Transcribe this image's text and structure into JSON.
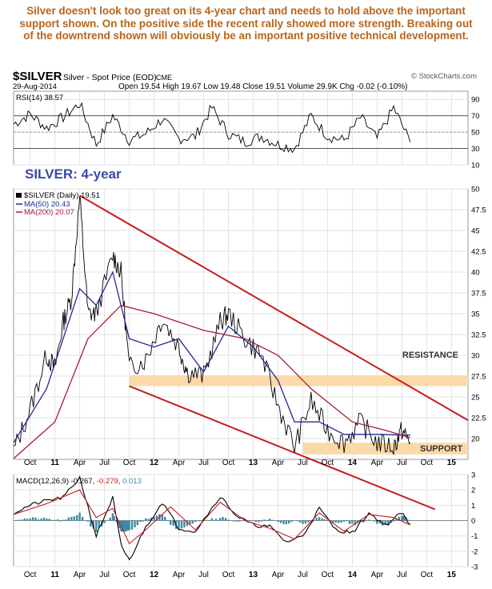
{
  "commentary": "Silver doesn't look too great on its 4-year chart and needs to hold above the important support shown. On the positive side the recent rally showed more strength. Breaking out of the downtrend shown will obviously be an important positive technical development.",
  "header": {
    "symbol": "$SILVER",
    "name": "Silver - Spot Price (EOD)",
    "exchange": "CME",
    "watermark": "© StockCharts.com",
    "date": "29-Aug-2014",
    "ohlc": {
      "open_label": "Open",
      "open": "19.54",
      "high_label": "High",
      "high": "19.67",
      "low_label": "Low",
      "low": "19.48",
      "close_label": "Close",
      "close": "19.51",
      "volume_label": "Volume",
      "volume": "29.9K",
      "chg_label": "Chg",
      "chg": "-0.02 (-0.10%)"
    }
  },
  "chart_data": {
    "type": "line",
    "title": "SILVER: 4-year",
    "x_ticks": [
      "Oct",
      "11",
      "Apr",
      "Jul",
      "Oct",
      "12",
      "Apr",
      "Jul",
      "Oct",
      "13",
      "Apr",
      "Jul",
      "Oct",
      "14",
      "Apr",
      "Jul",
      "Oct",
      "15"
    ],
    "x_range": [
      "2010-08",
      "2015-03"
    ],
    "grid": true,
    "colors": {
      "price": "#000000",
      "ma50": "#1f2a9a",
      "ma200": "#a01c3c",
      "trend": "#c41e1e",
      "zone": "#fbd9a8",
      "macd_hist": "#3d8aa5",
      "rsi_fill": "#3f7f3f"
    },
    "rsi": {
      "label": "RSI(14) 38.57",
      "ylim": [
        10,
        100
      ],
      "y_ticks": [
        10,
        30,
        50,
        70,
        90
      ],
      "levels": [
        30,
        70
      ],
      "x": [
        "2010-08",
        "2010-10",
        "2010-12",
        "2011-02",
        "2011-04",
        "2011-06",
        "2011-08",
        "2011-10",
        "2011-12",
        "2012-02",
        "2012-04",
        "2012-06",
        "2012-08",
        "2012-10",
        "2012-12",
        "2013-02",
        "2013-04",
        "2013-06",
        "2013-08",
        "2013-10",
        "2013-12",
        "2014-02",
        "2014-04",
        "2014-06",
        "2014-08"
      ],
      "values": [
        60,
        72,
        55,
        68,
        85,
        35,
        70,
        40,
        48,
        66,
        42,
        45,
        80,
        48,
        38,
        45,
        35,
        30,
        70,
        45,
        40,
        68,
        42,
        80,
        38
      ]
    },
    "price": {
      "legend": [
        "$SILVER (Daily) 19.51",
        "MA(50) 20.43",
        "MA(200) 20.07"
      ],
      "ylim": [
        17.5,
        50
      ],
      "y_ticks": [
        20,
        22.5,
        25,
        27.5,
        30,
        32.5,
        35,
        37.5,
        40,
        42.5,
        45,
        47.5,
        50
      ],
      "series": [
        {
          "name": "$SILVER (Daily) 19.51",
          "x": [
            "2010-08",
            "2010-10",
            "2010-12",
            "2011-01",
            "2011-02",
            "2011-03",
            "2011-04",
            "2011-05",
            "2011-06",
            "2011-08",
            "2011-09",
            "2011-10",
            "2011-12",
            "2012-02",
            "2012-04",
            "2012-05",
            "2012-07",
            "2012-09",
            "2012-10",
            "2012-12",
            "2013-02",
            "2013-04",
            "2013-06",
            "2013-08",
            "2013-10",
            "2013-12",
            "2014-02",
            "2014-04",
            "2014-06",
            "2014-07",
            "2014-08"
          ],
          "values": [
            18.5,
            23.5,
            30,
            28.5,
            34,
            37,
            49,
            35,
            35,
            42,
            40,
            28.5,
            29.5,
            34.5,
            31,
            28,
            27.5,
            34,
            35,
            32,
            30,
            24,
            19,
            24.5,
            21,
            19.5,
            22,
            19.5,
            19,
            21,
            19.5
          ]
        },
        {
          "name": "MA(50) 20.43",
          "x": [
            "2010-08",
            "2010-12",
            "2011-04",
            "2011-06",
            "2011-08",
            "2011-10",
            "2012-01",
            "2012-04",
            "2012-07",
            "2012-10",
            "2013-01",
            "2013-04",
            "2013-06",
            "2013-09",
            "2013-12",
            "2014-04",
            "2014-08"
          ],
          "values": [
            19.5,
            26,
            38,
            36,
            40,
            32,
            31,
            32,
            28,
            33.5,
            31,
            27,
            22,
            22,
            20.5,
            20.5,
            20.4
          ]
        },
        {
          "name": "MA(200) 20.07",
          "x": [
            "2010-08",
            "2011-01",
            "2011-05",
            "2011-09",
            "2012-01",
            "2012-07",
            "2012-12",
            "2013-04",
            "2013-08",
            "2014-01",
            "2014-05",
            "2014-08"
          ],
          "values": [
            17.5,
            22,
            32,
            36,
            35,
            33,
            32,
            30,
            26,
            22,
            21,
            20.1
          ]
        }
      ],
      "trendlines": [
        {
          "x": [
            "2011-04",
            "2015-03"
          ],
          "values": [
            49.2,
            22.2
          ]
        },
        {
          "x": [
            "2011-10",
            "2014-11"
          ],
          "values": [
            26.3,
            11.5
          ]
        }
      ],
      "zones": [
        {
          "label": "RESISTANCE",
          "values": [
            26.3,
            27.6
          ]
        },
        {
          "label": "SUPPORT",
          "values": [
            18.1,
            19.5
          ]
        }
      ]
    },
    "macd": {
      "label": "MACD(12,26,9)",
      "line_value": "-0.267",
      "signal_value": "-0.279",
      "hist_value": "0.013",
      "ylim": [
        -3,
        3
      ],
      "y_ticks": [
        -3,
        -2,
        -1,
        0,
        1,
        2,
        3
      ],
      "series": [
        {
          "name": "MACD",
          "x": [
            "2010-08",
            "2010-10",
            "2010-12",
            "2011-02",
            "2011-04",
            "2011-06",
            "2011-08",
            "2011-09",
            "2011-10",
            "2011-12",
            "2012-02",
            "2012-04",
            "2012-06",
            "2012-09",
            "2012-11",
            "2013-01",
            "2013-03",
            "2013-05",
            "2013-07",
            "2013-09",
            "2013-11",
            "2014-01",
            "2014-03",
            "2014-05",
            "2014-07",
            "2014-08"
          ],
          "values": [
            0.5,
            1,
            1.3,
            1.5,
            2.8,
            -1,
            1.5,
            -1.6,
            -2.6,
            -0.4,
            1.2,
            -0.5,
            -0.7,
            1.6,
            0.3,
            -0.3,
            -0.4,
            -1.4,
            -1,
            0.8,
            -0.6,
            -0.8,
            0.5,
            -0.3,
            0.5,
            -0.27
          ]
        },
        {
          "name": "Signal",
          "x": [
            "2010-08",
            "2010-12",
            "2011-04",
            "2011-06",
            "2011-08",
            "2011-10",
            "2011-12",
            "2012-03",
            "2012-06",
            "2012-09",
            "2012-12",
            "2013-03",
            "2013-06",
            "2013-09",
            "2013-12",
            "2014-03",
            "2014-06",
            "2014-08"
          ],
          "values": [
            0.4,
            1.1,
            2,
            0.2,
            0.8,
            -1.5,
            -0.6,
            0.9,
            -0.6,
            1.2,
            0,
            -0.5,
            -1.2,
            0.5,
            -0.7,
            0.4,
            0.2,
            -0.28
          ]
        }
      ]
    }
  }
}
